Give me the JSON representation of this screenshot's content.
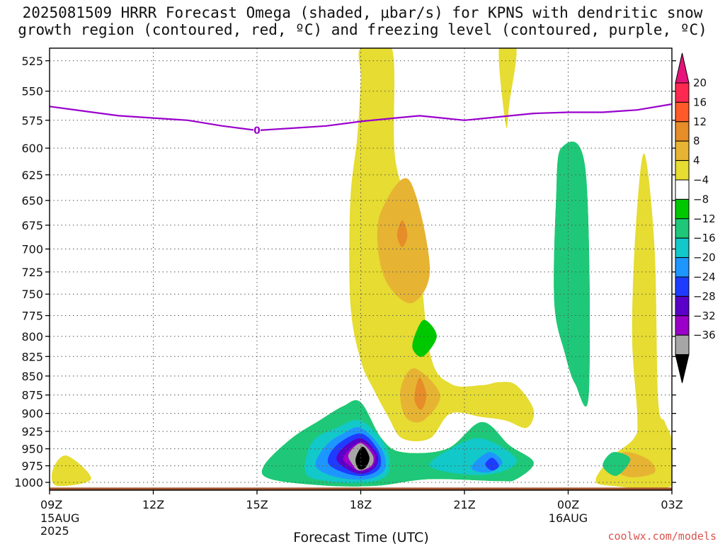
{
  "title": {
    "line1": "2025081509 HRRR Forecast Omega (shaded, μbar/s) for KPNS with dendritic snow",
    "line2": "growth region (contoured, red, ºC) and freezing level (contoured, purple, ºC)"
  },
  "credit": "coolwx.com/models",
  "chart_data": {
    "type": "time-height filled contour",
    "xlabel": "Forecast Time (UTC)",
    "x_ticks": [
      {
        "hour": 0,
        "label": "09Z",
        "sub1": "15AUG",
        "sub2": "2025"
      },
      {
        "hour": 3,
        "label": "12Z"
      },
      {
        "hour": 6,
        "label": "15Z"
      },
      {
        "hour": 9,
        "label": "18Z"
      },
      {
        "hour": 12,
        "label": "21Z"
      },
      {
        "hour": 15,
        "label": "00Z",
        "sub1": "16AUG"
      },
      {
        "hour": 18,
        "label": "03Z"
      }
    ],
    "xlim": [
      0,
      18
    ],
    "y_axis": "pressure (hPa), inverted, log scale",
    "ylim": [
      1012,
      515
    ],
    "y_ticks": [
      525,
      550,
      575,
      600,
      625,
      650,
      675,
      700,
      725,
      750,
      775,
      800,
      825,
      850,
      875,
      900,
      925,
      950,
      975,
      1000
    ],
    "grid": true,
    "colorbar": {
      "levels": [
        -36,
        -32,
        -28,
        -24,
        -20,
        -16,
        -12,
        -8,
        -4,
        4,
        8,
        12,
        16,
        20
      ],
      "labels": [
        "20",
        "16",
        "12",
        "8",
        "4",
        "−4",
        "−8",
        "−12",
        "−16",
        "−20",
        "−24",
        "−28",
        "−32",
        "−36"
      ],
      "colors": [
        "#000000",
        "#a6a6a6",
        "#9b00c8",
        "#5a00c8",
        "#1e3cff",
        "#1e96ff",
        "#12c8c8",
        "#1ec878",
        "#00c800",
        "#ffffff",
        "#e6dc32",
        "#e6b432",
        "#e68c28",
        "#ff5a28",
        "#ff2850",
        "#e6147a"
      ]
    },
    "freezing_level": {
      "label": "0",
      "color": "#9900cc",
      "points": [
        [
          0,
          563
        ],
        [
          1,
          567
        ],
        [
          2,
          571
        ],
        [
          3,
          573
        ],
        [
          4,
          575
        ],
        [
          5,
          580
        ],
        [
          6,
          584
        ],
        [
          7,
          582
        ],
        [
          8,
          580
        ],
        [
          9,
          576
        ],
        [
          10,
          573
        ],
        [
          10.7,
          571
        ],
        [
          12,
          575
        ],
        [
          13,
          572
        ],
        [
          14,
          569
        ],
        [
          15,
          568
        ],
        [
          16,
          568
        ],
        [
          17,
          566
        ],
        [
          18,
          561
        ]
      ]
    },
    "omega_regions": [
      {
        "level": 4,
        "points": [
          [
            9.0,
            515
          ],
          [
            9.9,
            515
          ],
          [
            10.0,
            610
          ],
          [
            10.6,
            680
          ],
          [
            11.0,
            820
          ],
          [
            11.6,
            860
          ],
          [
            12.5,
            862
          ],
          [
            13.0,
            858
          ],
          [
            13.5,
            862
          ],
          [
            14.0,
            895
          ],
          [
            13.8,
            920
          ],
          [
            13.2,
            910
          ],
          [
            12.5,
            905
          ],
          [
            11.6,
            900
          ],
          [
            11.0,
            935
          ],
          [
            10.2,
            935
          ],
          [
            9.8,
            905
          ],
          [
            9.4,
            870
          ],
          [
            9.0,
            830
          ],
          [
            8.7,
            760
          ],
          [
            8.7,
            650
          ],
          [
            8.9,
            590
          ],
          [
            9.0,
            540
          ]
        ]
      },
      {
        "level": 8,
        "points": [
          [
            10.4,
            630
          ],
          [
            11.0,
            720
          ],
          [
            10.5,
            760
          ],
          [
            9.8,
            740
          ],
          [
            9.5,
            700
          ],
          [
            9.6,
            660
          ]
        ]
      },
      {
        "level": 12,
        "points": [
          [
            10.2,
            670
          ],
          [
            10.35,
            685
          ],
          [
            10.2,
            698
          ],
          [
            10.05,
            685
          ]
        ]
      },
      {
        "level": 4,
        "points": [
          [
            10.0,
            800
          ],
          [
            10.5,
            845
          ],
          [
            11.1,
            880
          ],
          [
            10.9,
            925
          ],
          [
            10.3,
            925
          ],
          [
            9.9,
            900
          ],
          [
            9.9,
            860
          ]
        ]
      },
      {
        "level": 8,
        "points": [
          [
            10.55,
            840
          ],
          [
            11.3,
            875
          ],
          [
            10.8,
            910
          ],
          [
            10.3,
            905
          ],
          [
            10.15,
            868
          ]
        ]
      },
      {
        "level": 12,
        "points": [
          [
            10.7,
            852
          ],
          [
            10.9,
            875
          ],
          [
            10.75,
            895
          ],
          [
            10.55,
            880
          ]
        ]
      },
      {
        "level": -4,
        "points": [
          [
            10.85,
            780
          ],
          [
            11.2,
            800
          ],
          [
            10.8,
            825
          ],
          [
            10.5,
            815
          ],
          [
            10.6,
            795
          ]
        ]
      },
      {
        "level": 4,
        "points": [
          [
            13.0,
            515
          ],
          [
            13.5,
            515
          ],
          [
            13.3,
            560
          ],
          [
            13.2,
            580
          ]
        ]
      },
      {
        "level": 4,
        "points": [
          [
            17.2,
            605
          ],
          [
            17.5,
            700
          ],
          [
            17.6,
            880
          ],
          [
            17.8,
            912
          ],
          [
            18.0,
            940
          ],
          [
            18.0,
            1005
          ],
          [
            16.2,
            1005
          ],
          [
            15.8,
            995
          ],
          [
            16.3,
            960
          ],
          [
            16.9,
            935
          ],
          [
            17.0,
            905
          ],
          [
            16.85,
            800
          ],
          [
            16.95,
            680
          ]
        ]
      },
      {
        "level": 8,
        "points": [
          [
            16.6,
            955
          ],
          [
            17.3,
            965
          ],
          [
            17.5,
            985
          ],
          [
            16.8,
            992
          ],
          [
            16.3,
            978
          ]
        ]
      },
      {
        "level": 4,
        "points": [
          [
            0.5,
            960
          ],
          [
            1.2,
            995
          ],
          [
            0.2,
            1005
          ],
          [
            0.1,
            980
          ]
        ]
      },
      {
        "level": -4,
        "points": [
          [
            14.8,
            600
          ],
          [
            15.5,
            620
          ],
          [
            15.6,
            870
          ],
          [
            15.2,
            860
          ],
          [
            14.9,
            820
          ],
          [
            14.6,
            760
          ],
          [
            14.65,
            650
          ]
        ]
      },
      {
        "level": -8,
        "points": [
          [
            14.8,
            600
          ],
          [
            15.5,
            620
          ],
          [
            15.6,
            870
          ],
          [
            15.2,
            860
          ],
          [
            14.9,
            820
          ],
          [
            14.6,
            760
          ],
          [
            14.65,
            650
          ]
        ]
      },
      {
        "level": -4,
        "points": [
          [
            9.0,
            885
          ],
          [
            9.6,
            935
          ],
          [
            10.2,
            955
          ],
          [
            11.5,
            950
          ],
          [
            12.5,
            912
          ],
          [
            13.3,
            945
          ],
          [
            14.0,
            970
          ],
          [
            13.5,
            995
          ],
          [
            13.0,
            998
          ],
          [
            11.0,
            995
          ],
          [
            9.5,
            1005
          ],
          [
            8.0,
            1005
          ],
          [
            6.4,
            995
          ],
          [
            6.2,
            975
          ],
          [
            7.0,
            935
          ],
          [
            7.8,
            910
          ],
          [
            8.5,
            890
          ]
        ]
      },
      {
        "level": -8,
        "points": [
          [
            9.0,
            885
          ],
          [
            9.6,
            935
          ],
          [
            10.2,
            955
          ],
          [
            11.5,
            950
          ],
          [
            12.5,
            912
          ],
          [
            13.3,
            945
          ],
          [
            14.0,
            970
          ],
          [
            13.5,
            995
          ],
          [
            13.0,
            998
          ],
          [
            11.0,
            995
          ],
          [
            9.5,
            1005
          ],
          [
            8.0,
            1005
          ],
          [
            6.4,
            995
          ],
          [
            6.2,
            975
          ],
          [
            7.0,
            935
          ],
          [
            7.8,
            910
          ],
          [
            8.5,
            890
          ]
        ]
      },
      {
        "level": -8,
        "points": [
          [
            16.3,
            955
          ],
          [
            16.8,
            965
          ],
          [
            16.4,
            990
          ],
          [
            16.0,
            975
          ]
        ]
      },
      {
        "level": -12,
        "points": [
          [
            9.0,
            910
          ],
          [
            9.7,
            945
          ],
          [
            9.8,
            985
          ],
          [
            9.2,
            1000
          ],
          [
            8.0,
            998
          ],
          [
            7.4,
            985
          ],
          [
            7.6,
            940
          ],
          [
            8.3,
            920
          ]
        ]
      },
      {
        "level": -12,
        "points": [
          [
            12.5,
            935
          ],
          [
            13.5,
            965
          ],
          [
            13.0,
            985
          ],
          [
            12.0,
            988
          ],
          [
            11.0,
            975
          ],
          [
            11.6,
            950
          ]
        ]
      },
      {
        "level": -16,
        "points": [
          [
            9.0,
            920
          ],
          [
            9.6,
            950
          ],
          [
            9.7,
            980
          ],
          [
            9.2,
            995
          ],
          [
            8.3,
            992
          ],
          [
            7.7,
            975
          ],
          [
            8.0,
            945
          ],
          [
            8.5,
            928
          ]
        ]
      },
      {
        "level": -16,
        "points": [
          [
            12.7,
            955
          ],
          [
            13.1,
            970
          ],
          [
            12.7,
            985
          ],
          [
            12.2,
            978
          ]
        ]
      },
      {
        "level": -20,
        "points": [
          [
            9.0,
            928
          ],
          [
            9.5,
            952
          ],
          [
            9.55,
            978
          ],
          [
            9.1,
            990
          ],
          [
            8.5,
            985
          ],
          [
            8.05,
            970
          ],
          [
            8.3,
            945
          ]
        ]
      },
      {
        "level": -20,
        "points": [
          [
            12.8,
            963
          ],
          [
            13.0,
            975
          ],
          [
            12.8,
            982
          ],
          [
            12.6,
            973
          ]
        ]
      },
      {
        "level": -24,
        "points": [
          [
            9.0,
            935
          ],
          [
            9.45,
            955
          ],
          [
            9.45,
            975
          ],
          [
            9.05,
            987
          ],
          [
            8.6,
            980
          ],
          [
            8.3,
            965
          ],
          [
            8.5,
            948
          ]
        ]
      },
      {
        "level": -28,
        "points": [
          [
            9.0,
            940
          ],
          [
            9.4,
            958
          ],
          [
            9.35,
            975
          ],
          [
            9.0,
            983
          ],
          [
            8.7,
            976
          ],
          [
            8.5,
            962
          ]
        ]
      },
      {
        "level": -32,
        "points": [
          [
            9.0,
            942
          ],
          [
            9.35,
            960
          ],
          [
            9.3,
            975
          ],
          [
            8.95,
            982
          ],
          [
            8.75,
            972
          ],
          [
            8.65,
            958
          ]
        ]
      },
      {
        "level": -36,
        "points": [
          [
            9.05,
            947
          ],
          [
            9.25,
            962
          ],
          [
            9.15,
            977
          ],
          [
            8.95,
            980
          ],
          [
            8.85,
            965
          ]
        ]
      }
    ],
    "terrain": {
      "color": "#a0522d",
      "surface_pressure": 1012
    }
  }
}
